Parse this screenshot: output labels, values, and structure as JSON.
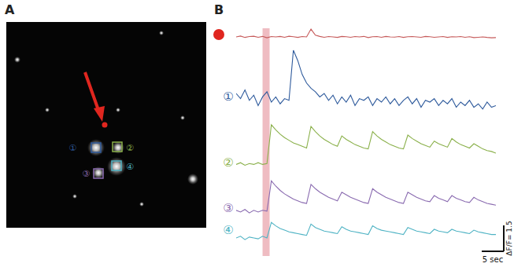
{
  "figure": {
    "panel_a": {
      "label": "A",
      "rois": [
        {
          "label": "①",
          "color": "#2e5a9c"
        },
        {
          "label": "②",
          "color": "#8ab04a"
        },
        {
          "label": "③",
          "color": "#8a6bb0"
        },
        {
          "label": "④",
          "color": "#4fb3c4"
        }
      ]
    },
    "panel_b": {
      "label": "B"
    }
  },
  "chart_data": {
    "type": "line",
    "tick_labels": false,
    "x": [
      0,
      1,
      2,
      3,
      4,
      5,
      6,
      7,
      8,
      9,
      10,
      11,
      12,
      13,
      14,
      15,
      16,
      17,
      18,
      19,
      20,
      21,
      22,
      23,
      24,
      25,
      26,
      27,
      28,
      29,
      30,
      31,
      32,
      33,
      34,
      35,
      36,
      37,
      38,
      39,
      40,
      41,
      42,
      43,
      44,
      45,
      46,
      47,
      48,
      49,
      50,
      51,
      52,
      53,
      54,
      55,
      56,
      57,
      58,
      59
    ],
    "xlim": [
      0,
      59
    ],
    "shaded_x": [
      6,
      7.6
    ],
    "scale_bar": {
      "x": 5,
      "x_label": "5 sec",
      "y": 1.5,
      "y_label": "ΔF/F= 1.5"
    },
    "series": [
      {
        "color": "#c65a5a",
        "marker": "circle",
        "ylim": [
          -1,
          2
        ],
        "values": [
          0,
          0.05,
          -0.03,
          0.02,
          0.04,
          -0.02,
          0.03,
          -0.05,
          0.02,
          0,
          0.03,
          -0.02,
          0.04,
          0.01,
          -0.03,
          0.02,
          0,
          0.45,
          0.1,
          0.03,
          -0.02,
          0.02,
          0,
          -0.03,
          0.03,
          0.01,
          -0.02,
          0.02,
          0,
          0.03,
          -0.04,
          0.01,
          0.02,
          -0.02,
          0.03,
          0,
          -0.01,
          0.02,
          -0.03,
          0.01,
          0.02,
          0,
          -0.02,
          0.03,
          0.01,
          -0.02,
          0,
          0.02,
          -0.03,
          0.01,
          0,
          0.02,
          -0.02,
          0.01,
          -0.04,
          -0.02,
          0,
          -0.03,
          -0.05,
          -0.04
        ]
      },
      {
        "name": "①",
        "color": "#2e5a9c",
        "ylim": [
          -1,
          3.5
        ],
        "values": [
          0.5,
          0.2,
          0.7,
          0.1,
          0.4,
          -0.2,
          0.3,
          0.6,
          0,
          0.3,
          -0.1,
          0.2,
          0.1,
          3.0,
          2.4,
          1.6,
          1.1,
          0.8,
          0.6,
          0.3,
          0.5,
          0.1,
          0.4,
          -0.1,
          0.3,
          0,
          0.4,
          -0.2,
          0.2,
          0.1,
          0.3,
          -0.2,
          0.2,
          0,
          0.3,
          -0.1,
          0.2,
          -0.2,
          0.1,
          0.3,
          -0.1,
          0.2,
          -0.3,
          0.1,
          0,
          0.2,
          -0.2,
          0.1,
          -0.1,
          0.2,
          -0.3,
          0,
          -0.2,
          0.1,
          -0.3,
          -0.1,
          -0.4,
          0,
          -0.3,
          -0.2
        ]
      },
      {
        "name": "②",
        "color": "#8ab04a",
        "ylim": [
          -1,
          2.5
        ],
        "values": [
          -0.2,
          -0.1,
          -0.25,
          -0.15,
          -0.2,
          -0.1,
          -0.2,
          -0.15,
          2.1,
          1.8,
          1.55,
          1.35,
          1.2,
          1.05,
          0.95,
          0.85,
          0.75,
          2.0,
          1.7,
          1.45,
          1.25,
          1.1,
          0.95,
          0.85,
          1.45,
          1.25,
          1.1,
          0.95,
          0.85,
          0.75,
          0.7,
          1.7,
          1.45,
          1.25,
          1.1,
          0.95,
          0.85,
          0.75,
          0.7,
          1.5,
          1.3,
          1.15,
          1.0,
          0.9,
          0.8,
          1.15,
          1.0,
          0.9,
          0.8,
          1.3,
          1.1,
          0.95,
          0.85,
          0.75,
          1.0,
          0.85,
          0.7,
          0.6,
          0.55,
          0.45
        ]
      },
      {
        "name": "③",
        "color": "#8a6bb0",
        "ylim": [
          -1,
          2.5
        ],
        "values": [
          0.1,
          0,
          0.15,
          -0.05,
          0.1,
          0,
          0.1,
          0.05,
          1.8,
          1.5,
          1.25,
          1.05,
          0.9,
          0.75,
          0.65,
          0.55,
          0.5,
          1.6,
          1.35,
          1.15,
          1.0,
          0.85,
          0.75,
          0.65,
          1.15,
          1.0,
          0.85,
          0.75,
          0.65,
          0.55,
          0.5,
          1.35,
          1.15,
          1.0,
          0.85,
          0.75,
          0.65,
          0.55,
          0.5,
          1.15,
          1.0,
          0.85,
          0.75,
          0.65,
          0.6,
          0.95,
          0.8,
          0.7,
          0.6,
          0.95,
          0.8,
          0.7,
          0.6,
          0.55,
          0.85,
          0.7,
          0.6,
          0.5,
          0.45,
          0.4
        ]
      },
      {
        "name": "④",
        "color": "#4fb3c4",
        "ylim": [
          -1,
          2
        ],
        "values": [
          0,
          0.1,
          -0.1,
          0.05,
          0,
          -0.05,
          0.1,
          0,
          0.9,
          0.7,
          0.55,
          0.45,
          0.35,
          0.3,
          0.25,
          0.2,
          0.15,
          0.8,
          0.6,
          0.5,
          0.4,
          0.35,
          0.3,
          0.25,
          0.65,
          0.5,
          0.4,
          0.35,
          0.3,
          0.25,
          0.2,
          0.7,
          0.55,
          0.45,
          0.4,
          0.35,
          0.3,
          0.25,
          0.2,
          0.6,
          0.5,
          0.4,
          0.35,
          0.3,
          0.25,
          0.5,
          0.4,
          0.35,
          0.3,
          0.5,
          0.4,
          0.35,
          0.3,
          0.25,
          0.45,
          0.35,
          0.3,
          0.25,
          0.2,
          0.2
        ]
      }
    ]
  }
}
